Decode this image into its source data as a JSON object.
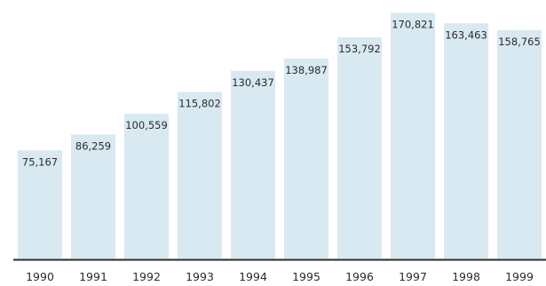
{
  "chart_data": {
    "type": "bar",
    "categories": [
      "1990",
      "1991",
      "1992",
      "1993",
      "1994",
      "1995",
      "1996",
      "1997",
      "1998",
      "1999"
    ],
    "values": [
      75167,
      86259,
      100559,
      115802,
      130437,
      138987,
      153792,
      170821,
      163463,
      158765
    ],
    "value_labels": [
      "75,167",
      "86,259",
      "100,559",
      "115,802",
      "130,437",
      "138,987",
      "153,792",
      "170,821",
      "163,463",
      "158,765"
    ],
    "title": "",
    "xlabel": "",
    "ylabel": "",
    "ylim": [
      0,
      180000
    ],
    "grid": false,
    "legend": "none",
    "colors": {
      "bar": "#d8e9f1",
      "axis": "#2a2a2a",
      "text": "#2b2b2b"
    }
  }
}
